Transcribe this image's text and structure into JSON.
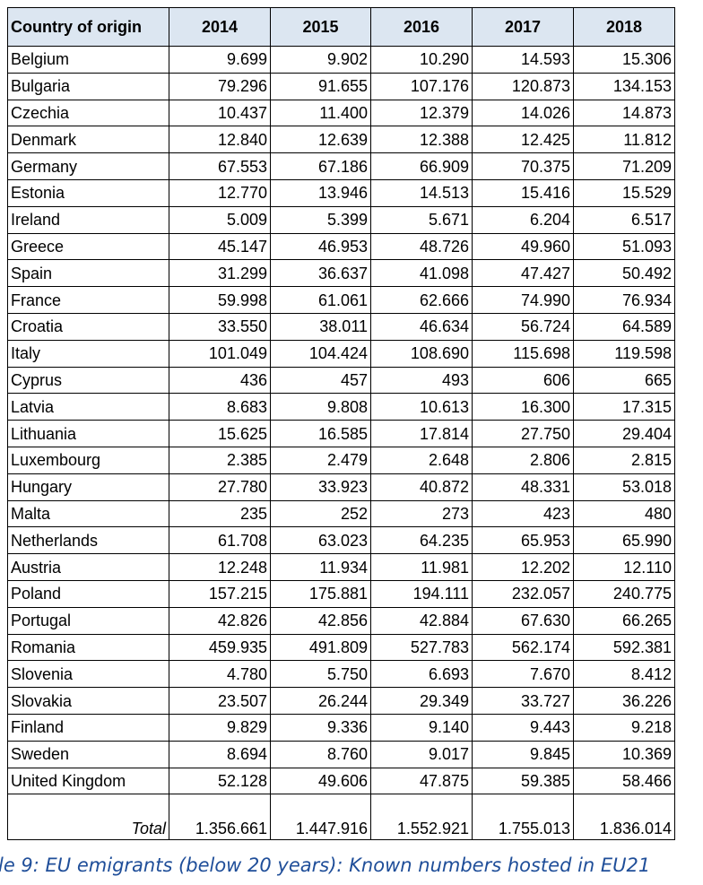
{
  "table": {
    "header": [
      "Country of origin",
      "2014",
      "2015",
      "2016",
      "2017",
      "2018"
    ],
    "rows": [
      [
        "Belgium",
        "9.699",
        "9.902",
        "10.290",
        "14.593",
        "15.306"
      ],
      [
        "Bulgaria",
        "79.296",
        "91.655",
        "107.176",
        "120.873",
        "134.153"
      ],
      [
        "Czechia",
        "10.437",
        "11.400",
        "12.379",
        "14.026",
        "14.873"
      ],
      [
        "Denmark",
        "12.840",
        "12.639",
        "12.388",
        "12.425",
        "11.812"
      ],
      [
        "Germany",
        "67.553",
        "67.186",
        "66.909",
        "70.375",
        "71.209"
      ],
      [
        "Estonia",
        "12.770",
        "13.946",
        "14.513",
        "15.416",
        "15.529"
      ],
      [
        "Ireland",
        "5.009",
        "5.399",
        "5.671",
        "6.204",
        "6.517"
      ],
      [
        "Greece",
        "45.147",
        "46.953",
        "48.726",
        "49.960",
        "51.093"
      ],
      [
        "Spain",
        "31.299",
        "36.637",
        "41.098",
        "47.427",
        "50.492"
      ],
      [
        "France",
        "59.998",
        "61.061",
        "62.666",
        "74.990",
        "76.934"
      ],
      [
        "Croatia",
        "33.550",
        "38.011",
        "46.634",
        "56.724",
        "64.589"
      ],
      [
        "Italy",
        "101.049",
        "104.424",
        "108.690",
        "115.698",
        "119.598"
      ],
      [
        "Cyprus",
        "436",
        "457",
        "493",
        "606",
        "665"
      ],
      [
        "Latvia",
        "8.683",
        "9.808",
        "10.613",
        "16.300",
        "17.315"
      ],
      [
        "Lithuania",
        "15.625",
        "16.585",
        "17.814",
        "27.750",
        "29.404"
      ],
      [
        "Luxembourg",
        "2.385",
        "2.479",
        "2.648",
        "2.806",
        "2.815"
      ],
      [
        "Hungary",
        "27.780",
        "33.923",
        "40.872",
        "48.331",
        "53.018"
      ],
      [
        "Malta",
        "235",
        "252",
        "273",
        "423",
        "480"
      ],
      [
        "Netherlands",
        "61.708",
        "63.023",
        "64.235",
        "65.953",
        "65.990"
      ],
      [
        "Austria",
        "12.248",
        "11.934",
        "11.981",
        "12.202",
        "12.110"
      ],
      [
        "Poland",
        "157.215",
        "175.881",
        "194.111",
        "232.057",
        "240.775"
      ],
      [
        "Portugal",
        "42.826",
        "42.856",
        "42.884",
        "67.630",
        "66.265"
      ],
      [
        "Romania",
        "459.935",
        "491.809",
        "527.783",
        "562.174",
        "592.381"
      ],
      [
        "Slovenia",
        "4.780",
        "5.750",
        "6.693",
        "7.670",
        "8.412"
      ],
      [
        "Slovakia",
        "23.507",
        "26.244",
        "29.349",
        "33.727",
        "36.226"
      ],
      [
        "Finland",
        "9.829",
        "9.336",
        "9.140",
        "9.443",
        "9.218"
      ],
      [
        "Sweden",
        "8.694",
        "8.760",
        "9.017",
        "9.845",
        "10.369"
      ],
      [
        "United Kingdom",
        "52.128",
        "49.606",
        "47.875",
        "59.385",
        "58.466"
      ]
    ],
    "total": [
      "Total",
      "1.356.661",
      "1.447.916",
      "1.552.921",
      "1.755.013",
      "1.836.014"
    ]
  },
  "caption": "le 9: EU emigrants (below 20 years): Known numbers hosted in EU21"
}
